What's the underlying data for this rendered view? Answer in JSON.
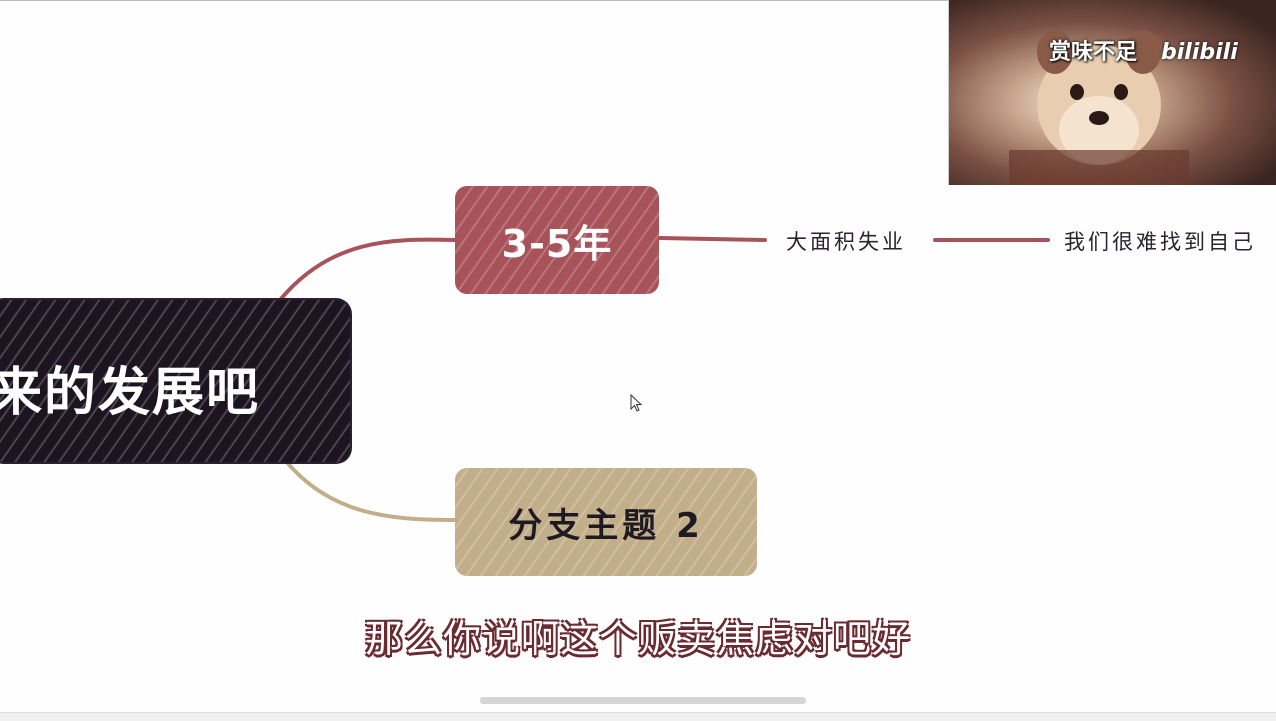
{
  "mindmap": {
    "root": {
      "label": "来的发展吧",
      "color": "#1c1420"
    },
    "branches": [
      {
        "label": "3-5年",
        "color": "#a8525a"
      },
      {
        "label": "分支主题 2",
        "color": "#c3ae8a"
      }
    ],
    "subtopics": [
      {
        "label": "大面积失业"
      },
      {
        "label": "我们很难找到自己"
      }
    ]
  },
  "video_overlay": {
    "caption": "赏味不足",
    "logo": "bilibili"
  },
  "subtitle": "那么你说啊这个贩卖焦虑对吧好",
  "icons": {
    "cursor": "mouse-pointer-icon"
  }
}
